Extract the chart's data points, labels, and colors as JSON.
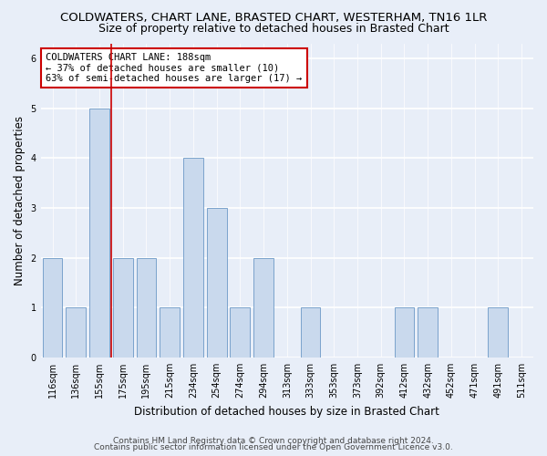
{
  "title": "COLDWATERS, CHART LANE, BRASTED CHART, WESTERHAM, TN16 1LR",
  "subtitle": "Size of property relative to detached houses in Brasted Chart",
  "xlabel": "Distribution of detached houses by size in Brasted Chart",
  "ylabel": "Number of detached properties",
  "footer_line1": "Contains HM Land Registry data © Crown copyright and database right 2024.",
  "footer_line2": "Contains public sector information licensed under the Open Government Licence v3.0.",
  "annotation_line1": "COLDWATERS CHART LANE: 188sqm",
  "annotation_line2": "← 37% of detached houses are smaller (10)",
  "annotation_line3": "63% of semi-detached houses are larger (17) →",
  "categories": [
    "116sqm",
    "136sqm",
    "155sqm",
    "175sqm",
    "195sqm",
    "215sqm",
    "234sqm",
    "254sqm",
    "274sqm",
    "294sqm",
    "313sqm",
    "333sqm",
    "353sqm",
    "373sqm",
    "392sqm",
    "412sqm",
    "432sqm",
    "452sqm",
    "471sqm",
    "491sqm",
    "511sqm"
  ],
  "values": [
    2,
    1,
    5,
    2,
    2,
    1,
    4,
    3,
    1,
    2,
    0,
    1,
    0,
    0,
    0,
    1,
    1,
    0,
    0,
    1,
    0
  ],
  "bar_color": "#c9d9ed",
  "bar_edge_color": "#7ba3cc",
  "red_line_index": 2.5,
  "ylim": [
    0,
    6.3
  ],
  "yticks": [
    0,
    1,
    2,
    3,
    4,
    5,
    6
  ],
  "background_color": "#e8eef8",
  "plot_bg_color": "#e8eef8",
  "grid_color": "#ffffff",
  "annotation_box_color": "#ffffff",
  "annotation_box_edge": "#cc0000",
  "title_fontsize": 9.5,
  "subtitle_fontsize": 9,
  "xlabel_fontsize": 8.5,
  "ylabel_fontsize": 8.5,
  "tick_fontsize": 7,
  "annotation_fontsize": 7.5,
  "footer_fontsize": 6.5
}
